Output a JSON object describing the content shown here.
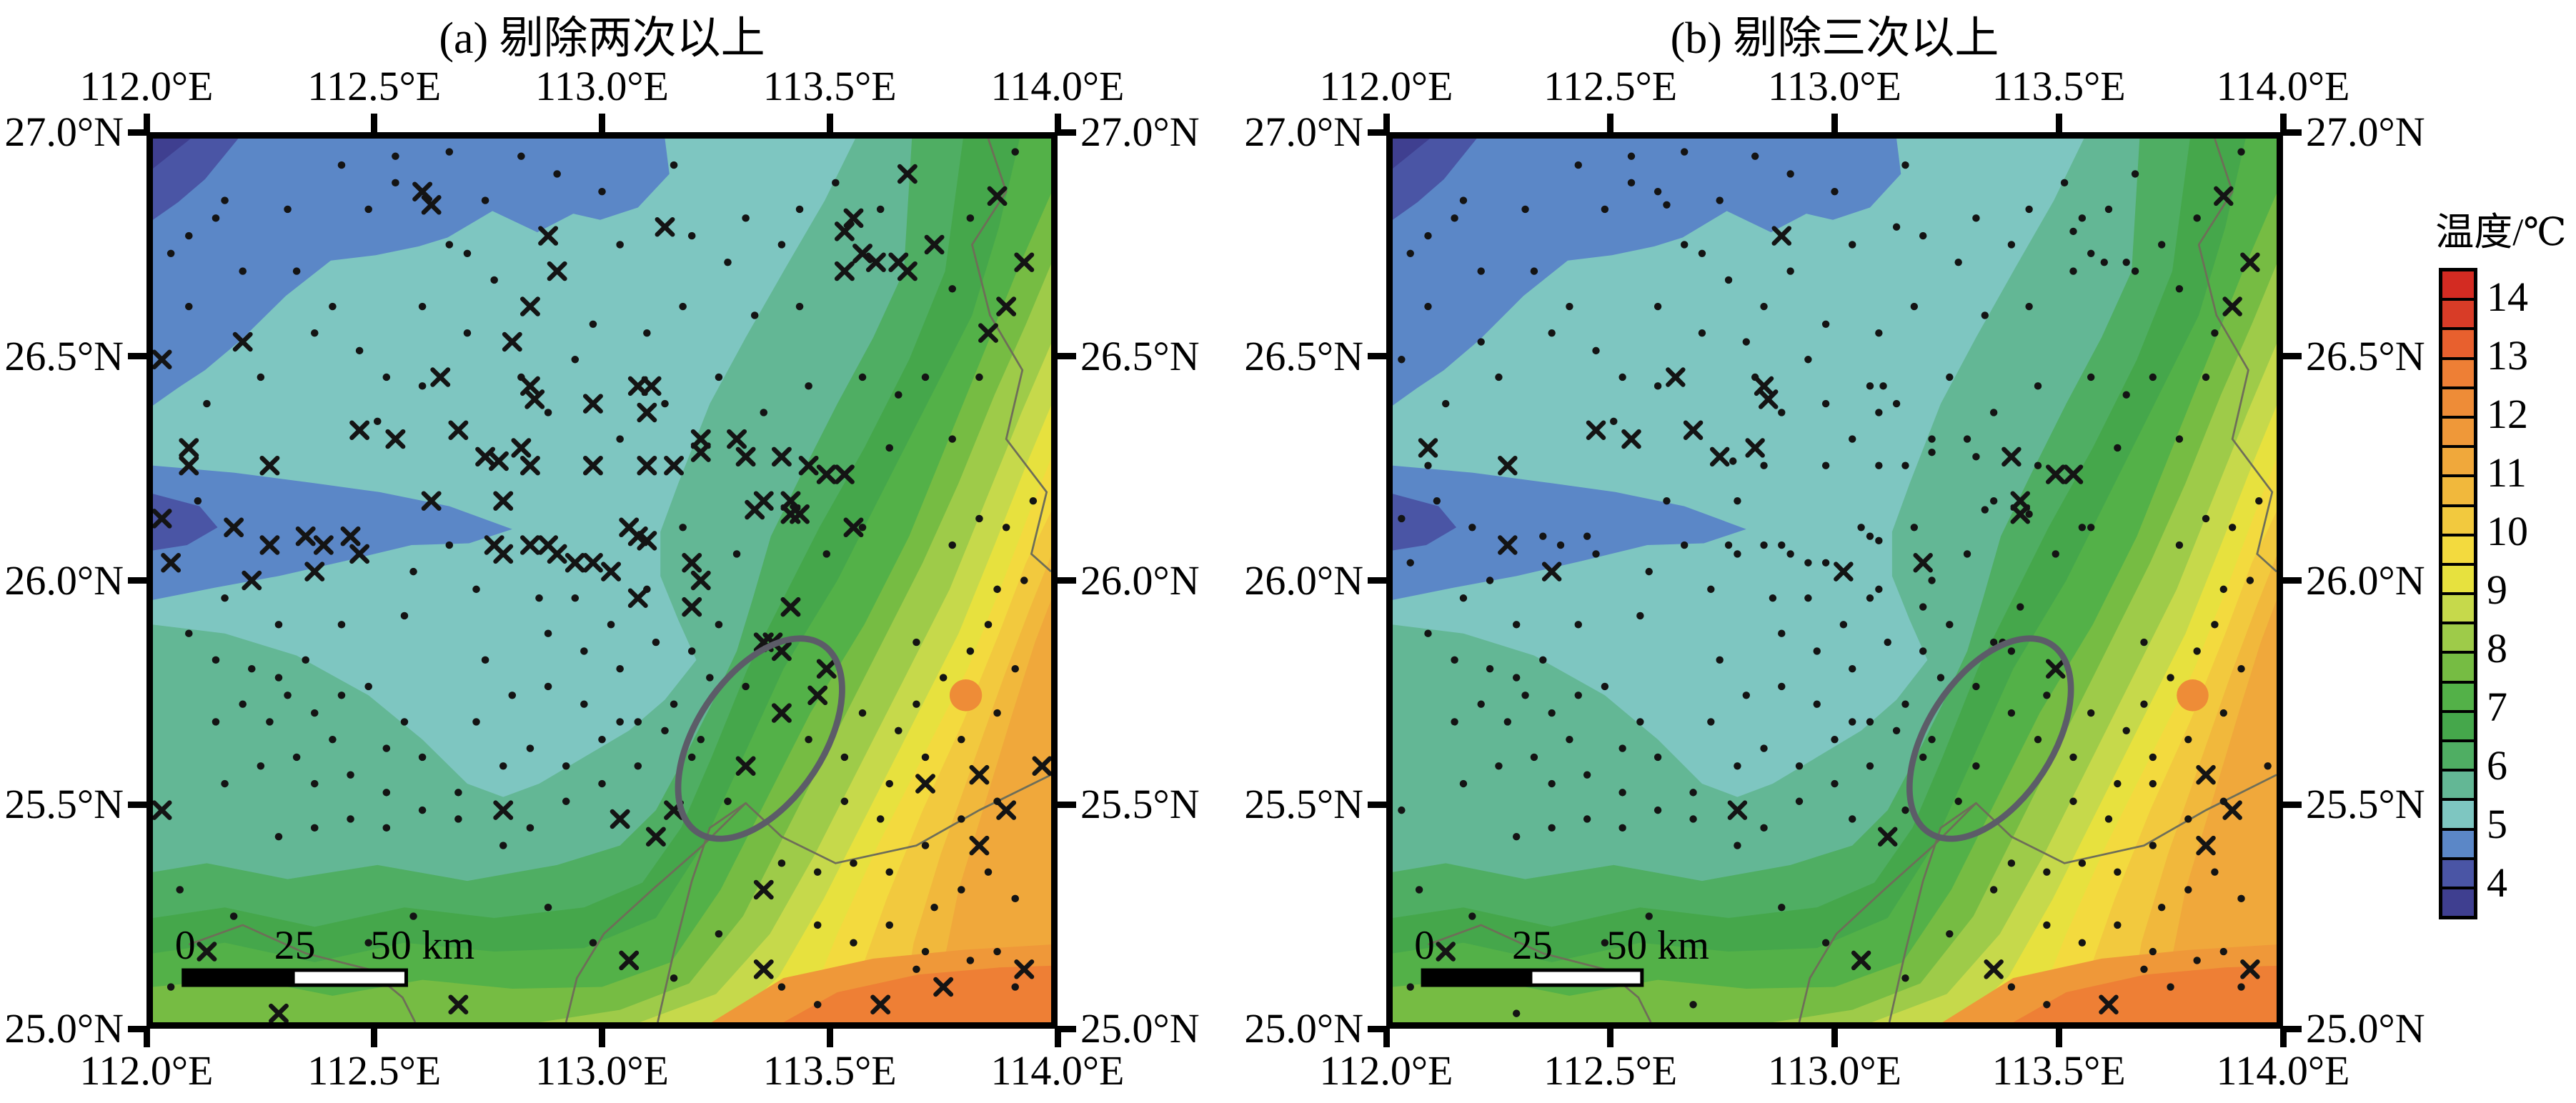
{
  "figure": {
    "panels": [
      {
        "id": "a",
        "title": "(a) 剔除两次以上"
      },
      {
        "id": "b",
        "title": "(b) 剔除三次以上"
      }
    ],
    "axes": {
      "lon_labels": [
        "112.0°E",
        "112.5°E",
        "113.0°E",
        "113.5°E",
        "114.0°E"
      ],
      "lat_labels": [
        "27.0°N",
        "26.5°N",
        "26.0°N",
        "25.5°N",
        "25.0°N"
      ]
    },
    "scalebar": {
      "labels": [
        "0",
        "25",
        "50 km"
      ]
    },
    "colorbar": {
      "title": "温度/℃",
      "tick_labels": [
        "14",
        "13",
        "12",
        "11",
        "10",
        "9",
        "8",
        "7",
        "6",
        "5",
        "4"
      ],
      "colors_low_to_high": [
        "#3f3f90",
        "#4a55a5",
        "#5b87c7",
        "#7ec6c1",
        "#63b795",
        "#4fae63",
        "#45a74b",
        "#53b148",
        "#76bc43",
        "#9ecb49",
        "#c6d94b",
        "#e7e13e",
        "#f3da3e",
        "#f2c93e",
        "#f1b83c",
        "#f0a83b",
        "#ef9839",
        "#ee8c37",
        "#ee7f35",
        "#e8602e",
        "#d83c27",
        "#d32b22"
      ]
    }
  },
  "chart_data": {
    "type": "heatmap",
    "subtype": "filled-contour temperature map, two subplots sharing one colorbar",
    "subplots": [
      {
        "label": "(a) 剔除两次以上",
        "xlabel_ticks": [
          "112.0°E",
          "112.5°E",
          "113.0°E",
          "113.5°E",
          "114.0°E"
        ],
        "ylabel_ticks": [
          "27.0°N",
          "26.5°N",
          "26.0°N",
          "25.5°N",
          "25.0°N"
        ],
        "lon_range": [
          112.0,
          114.0
        ],
        "lat_range": [
          25.0,
          27.0
        ]
      },
      {
        "label": "(b) 剔除三次以上",
        "xlabel_ticks": [
          "112.0°E",
          "112.5°E",
          "113.0°E",
          "113.5°E",
          "114.0°E"
        ],
        "ylabel_ticks": [
          "27.0°N",
          "26.5°N",
          "26.0°N",
          "25.5°N",
          "25.0°N"
        ],
        "lon_range": [
          112.0,
          114.0
        ],
        "lat_range": [
          25.0,
          27.0
        ]
      },
      {
        "note": "Both panels show the same interpolated temperature field: cold (~4-5 °C, blues) in the northwest/top, ~5-6 °C (cyan/teal) through the centre, warming southeast through greens and yellows to ~12-13 °C (deep orange) in the bottom-right corner."
      }
    ],
    "colorbar": {
      "label": "温度/℃",
      "value_range": [
        3.5,
        14.5
      ],
      "cell_step": 0.5,
      "tick_values": [
        14,
        13,
        12,
        11,
        10,
        9,
        8,
        7,
        6,
        5,
        4
      ],
      "levels_low_to_high": [
        3.5,
        4,
        4.5,
        5,
        5.5,
        6,
        6.5,
        7,
        7.5,
        8,
        8.5,
        9,
        9.5,
        10,
        10.5,
        11,
        11.5,
        12,
        12.5,
        13,
        13.5,
        14
      ],
      "colors_low_to_high": [
        "#3f3f90",
        "#4a55a5",
        "#5b87c7",
        "#7ec6c1",
        "#63b795",
        "#4fae63",
        "#45a74b",
        "#53b148",
        "#76bc43",
        "#9ecb49",
        "#c6d94b",
        "#e7e13e",
        "#f3da3e",
        "#f2c93e",
        "#f1b83c",
        "#f0a83b",
        "#ef9839",
        "#ee8c37",
        "#ee7f35",
        "#e8602e",
        "#d83c27",
        "#d32b22"
      ]
    },
    "annotations": {
      "ellipse": {
        "approx_center_lon": 113.35,
        "approx_center_lat": 25.65,
        "style": "gray outline, rotated ~33°",
        "in_both_panels": true
      },
      "scalebar": {
        "labels": [
          "0",
          "25",
          "50 km"
        ],
        "position": "bottom-left of each map"
      },
      "boundary_lines": "thin dark administrative boundary lines in right and bottom portions"
    },
    "stations": {
      "units": "percent of map width/height from top-left corner",
      "dots_both": [
        [
          4,
          11
        ],
        [
          8,
          7
        ],
        [
          15,
          8
        ],
        [
          10,
          15
        ],
        [
          16,
          15
        ],
        [
          21,
          3
        ],
        [
          27,
          2
        ],
        [
          33,
          1.5
        ],
        [
          27,
          5
        ],
        [
          35,
          13
        ],
        [
          41,
          2
        ],
        [
          45,
          4
        ],
        [
          50,
          6
        ],
        [
          58,
          3
        ],
        [
          60,
          11
        ],
        [
          64,
          14
        ],
        [
          67,
          20
        ],
        [
          72,
          19
        ],
        [
          63,
          27
        ],
        [
          49,
          21
        ],
        [
          55,
          22
        ],
        [
          41,
          27
        ],
        [
          35,
          22
        ],
        [
          30,
          19
        ],
        [
          25,
          32
        ],
        [
          20,
          19
        ],
        [
          7,
          9
        ],
        [
          2,
          13
        ],
        [
          4,
          19
        ],
        [
          76,
          5
        ],
        [
          72,
          8
        ],
        [
          81,
          8
        ],
        [
          91,
          9
        ],
        [
          96,
          1.5
        ],
        [
          89,
          17
        ],
        [
          92,
          27
        ],
        [
          86,
          27
        ],
        [
          83,
          29
        ],
        [
          79,
          27
        ],
        [
          89,
          34
        ],
        [
          95,
          44
        ],
        [
          92,
          43
        ],
        [
          89,
          46
        ],
        [
          82,
          35
        ],
        [
          79,
          44
        ],
        [
          94,
          51
        ],
        [
          93,
          55
        ],
        [
          4,
          56
        ],
        [
          7,
          59
        ],
        [
          11,
          60
        ],
        [
          14,
          61
        ],
        [
          17,
          59
        ],
        [
          15,
          63
        ],
        [
          10,
          64
        ],
        [
          7,
          66
        ],
        [
          13,
          66
        ],
        [
          18,
          65
        ],
        [
          21,
          63
        ],
        [
          24,
          62
        ],
        [
          20,
          68
        ],
        [
          16,
          70
        ],
        [
          12,
          71
        ],
        [
          8,
          73
        ],
        [
          18,
          73
        ],
        [
          22,
          72
        ],
        [
          26,
          69
        ],
        [
          28,
          66
        ],
        [
          30,
          70
        ],
        [
          26,
          74
        ],
        [
          22,
          77
        ],
        [
          18,
          78
        ],
        [
          14,
          79
        ],
        [
          26,
          78
        ],
        [
          30,
          76
        ],
        [
          34,
          74
        ],
        [
          39,
          71
        ],
        [
          42,
          69
        ],
        [
          34,
          77
        ],
        [
          39,
          80
        ],
        [
          42,
          78
        ],
        [
          46,
          75
        ],
        [
          50,
          73
        ],
        [
          46,
          71
        ],
        [
          54,
          71
        ],
        [
          50,
          68
        ],
        [
          54,
          66
        ],
        [
          58,
          64
        ],
        [
          62,
          61
        ],
        [
          77,
          75
        ],
        [
          82,
          73
        ],
        [
          86,
          70
        ],
        [
          90,
          68
        ],
        [
          94,
          65
        ],
        [
          81,
          77
        ],
        [
          86,
          80
        ],
        [
          90,
          77
        ],
        [
          94,
          75
        ],
        [
          70,
          82
        ],
        [
          74,
          83
        ],
        [
          78,
          82
        ],
        [
          82,
          83
        ],
        [
          87,
          87
        ],
        [
          90,
          85
        ],
        [
          93,
          83
        ],
        [
          74,
          89
        ],
        [
          78,
          91
        ],
        [
          82,
          89
        ],
        [
          86,
          92
        ],
        [
          91,
          93
        ],
        [
          94,
          92
        ],
        [
          70,
          96
        ],
        [
          74,
          98
        ],
        [
          44,
          56
        ],
        [
          48,
          58
        ],
        [
          52,
          60
        ],
        [
          56,
          57
        ],
        [
          60,
          58
        ],
        [
          44,
          62
        ],
        [
          48,
          64
        ],
        [
          52,
          66
        ],
        [
          37,
          59
        ],
        [
          40,
          63
        ],
        [
          36,
          66
        ],
        [
          57,
          67
        ],
        [
          61,
          68
        ],
        [
          63,
          55
        ],
        [
          47,
          52
        ],
        [
          43,
          52
        ],
        [
          51,
          55
        ],
        [
          55,
          51
        ],
        [
          65,
          47
        ],
        [
          59,
          44
        ],
        [
          57,
          30
        ],
        [
          52,
          34
        ],
        [
          47,
          25
        ],
        [
          44,
          31
        ],
        [
          59,
          19
        ],
        [
          66,
          9
        ],
        [
          70,
          12
        ],
        [
          52,
          12
        ],
        [
          37,
          7
        ],
        [
          24,
          8
        ],
        [
          18,
          22
        ],
        [
          12,
          27
        ],
        [
          6,
          30
        ],
        [
          73,
          28
        ],
        [
          68,
          31
        ],
        [
          75,
          47
        ],
        [
          85,
          57
        ],
        [
          88,
          61
        ],
        [
          91,
          58
        ],
        [
          96,
          60
        ],
        [
          85,
          64
        ],
        [
          96,
          86
        ],
        [
          96,
          96
        ],
        [
          85,
          94
        ],
        [
          63,
          90
        ],
        [
          58,
          95
        ],
        [
          49,
          91
        ],
        [
          44,
          87
        ],
        [
          29,
          88
        ],
        [
          24,
          91
        ],
        [
          19,
          95
        ],
        [
          9,
          88
        ],
        [
          3,
          85
        ],
        [
          2,
          96
        ],
        [
          66,
          62
        ],
        [
          64,
          75
        ],
        [
          60,
          70
        ],
        [
          36,
          51
        ],
        [
          28,
          54
        ],
        [
          21,
          55
        ],
        [
          14,
          55
        ],
        [
          8,
          52
        ],
        [
          33,
          46
        ],
        [
          29,
          49
        ],
        [
          5,
          41
        ],
        [
          73,
          68
        ],
        [
          77,
          70
        ],
        [
          79,
          65
        ],
        [
          83,
          67
        ],
        [
          97,
          50
        ],
        [
          98,
          41
        ],
        [
          33,
          12
        ],
        [
          38,
          16
        ],
        [
          30,
          28
        ],
        [
          26,
          27
        ],
        [
          23,
          24
        ]
      ],
      "cross_a_dot_b": [
        [
          30,
          6
        ],
        [
          31,
          7.5
        ],
        [
          57,
          10
        ],
        [
          84,
          4
        ],
        [
          78,
          9
        ],
        [
          77,
          10.5
        ],
        [
          79,
          13
        ],
        [
          80.5,
          14
        ],
        [
          77,
          15
        ],
        [
          83,
          14
        ],
        [
          84,
          15
        ],
        [
          87,
          12
        ],
        [
          93,
          22
        ],
        [
          1,
          25
        ],
        [
          10,
          23
        ],
        [
          45,
          15
        ],
        [
          42,
          19
        ],
        [
          40,
          23
        ],
        [
          54,
          28
        ],
        [
          55.5,
          28
        ],
        [
          49,
          30
        ],
        [
          55,
          31
        ],
        [
          38.5,
          36.5
        ],
        [
          42,
          37
        ],
        [
          49,
          37
        ],
        [
          55,
          37
        ],
        [
          58,
          37
        ],
        [
          61,
          34
        ],
        [
          61,
          35.5
        ],
        [
          65,
          34
        ],
        [
          66,
          36
        ],
        [
          73,
          37
        ],
        [
          68,
          41
        ],
        [
          72,
          42.5
        ],
        [
          67,
          42
        ],
        [
          78,
          44
        ],
        [
          4,
          37
        ],
        [
          9,
          44
        ],
        [
          17,
          45
        ],
        [
          19,
          46
        ],
        [
          22,
          45
        ],
        [
          23,
          47
        ],
        [
          11,
          50
        ],
        [
          2,
          48
        ],
        [
          1,
          43
        ],
        [
          31,
          41
        ],
        [
          39,
          41
        ],
        [
          38,
          46
        ],
        [
          39,
          47
        ],
        [
          42,
          46
        ],
        [
          44,
          46
        ],
        [
          45,
          47
        ],
        [
          47,
          48
        ],
        [
          49,
          48
        ],
        [
          53,
          44
        ],
        [
          54,
          45
        ],
        [
          55,
          45.5
        ],
        [
          61,
          50
        ],
        [
          54,
          52
        ],
        [
          60,
          53
        ],
        [
          71,
          53
        ],
        [
          68,
          57
        ],
        [
          69,
          57
        ],
        [
          70,
          58
        ],
        [
          66,
          71
        ],
        [
          58,
          76
        ],
        [
          52,
          77
        ],
        [
          1,
          76
        ],
        [
          14,
          99
        ],
        [
          88,
          96
        ],
        [
          99,
          71
        ],
        [
          86,
          73
        ],
        [
          68,
          85
        ],
        [
          74,
          63
        ],
        [
          70,
          65
        ],
        [
          34,
          98
        ]
      ],
      "cross_both": [
        [
          44,
          11
        ],
        [
          32,
          27
        ],
        [
          42,
          28
        ],
        [
          42.5,
          29.5
        ],
        [
          23,
          33
        ],
        [
          27,
          34
        ],
        [
          34,
          33
        ],
        [
          37,
          36
        ],
        [
          41,
          35
        ],
        [
          51,
          49
        ],
        [
          60,
          48
        ],
        [
          13,
          37
        ],
        [
          4,
          35
        ],
        [
          13,
          46
        ],
        [
          18,
          49
        ],
        [
          70,
          36
        ],
        [
          75,
          38
        ],
        [
          77,
          38
        ],
        [
          71,
          41
        ],
        [
          71,
          42.5
        ],
        [
          95,
          19
        ],
        [
          97,
          14
        ],
        [
          94,
          6.5
        ],
        [
          75,
          60
        ],
        [
          92,
          72
        ],
        [
          95,
          76
        ],
        [
          92,
          80
        ],
        [
          6,
          92
        ],
        [
          53,
          93
        ],
        [
          68,
          94
        ],
        [
          81,
          98
        ],
        [
          97,
          94
        ],
        [
          39,
          76
        ],
        [
          56,
          79
        ]
      ]
    }
  }
}
